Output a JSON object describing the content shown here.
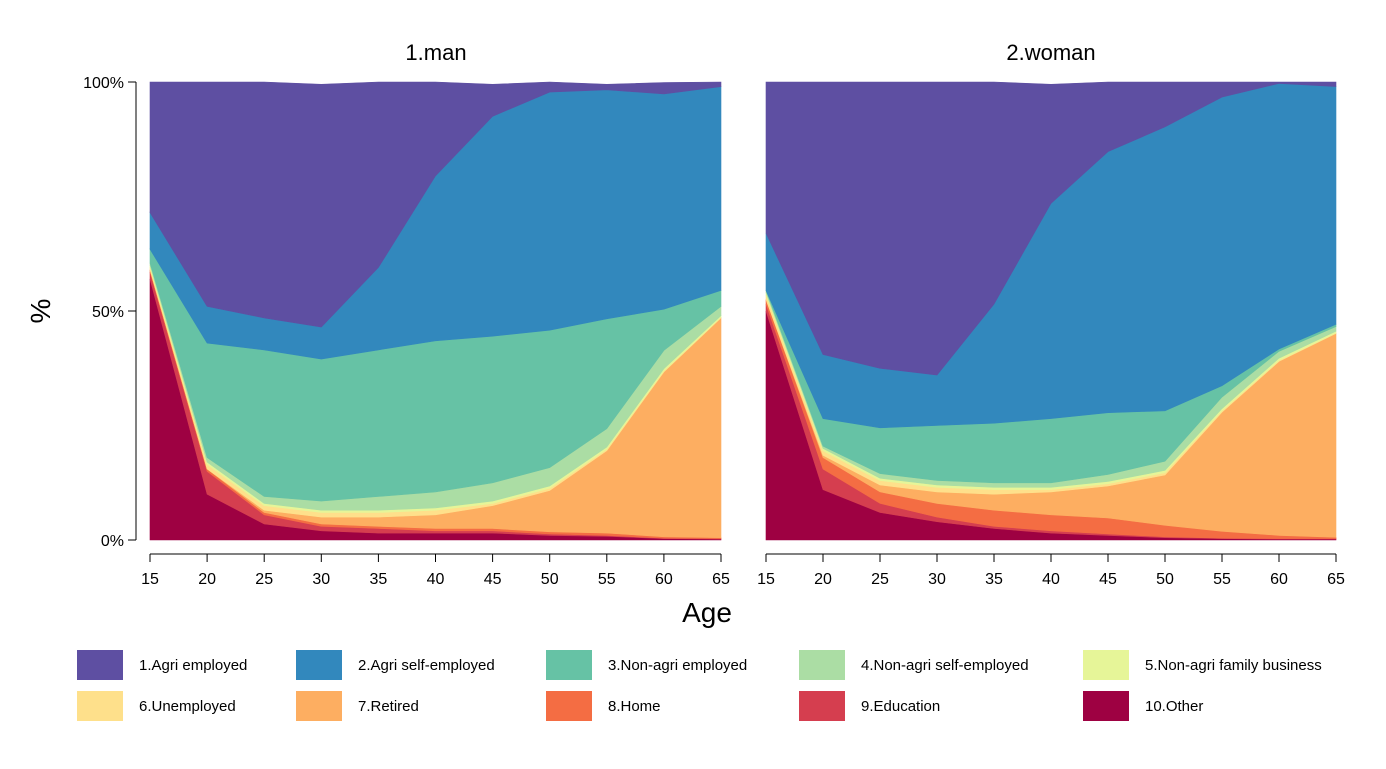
{
  "chart_data": {
    "type": "area",
    "stacking": "percent",
    "xlabel": "Age",
    "ylabel": "%",
    "xlim": [
      15,
      65
    ],
    "ylim": [
      0,
      100
    ],
    "xticks": [
      15,
      20,
      25,
      30,
      35,
      40,
      45,
      50,
      55,
      60,
      65
    ],
    "yticks": [
      0,
      50,
      100
    ],
    "ytick_labels": [
      "0%",
      "50%",
      "100%"
    ],
    "grid": false,
    "legend_position": "bottom",
    "x": [
      15,
      20,
      25,
      30,
      35,
      40,
      45,
      50,
      55,
      60,
      65
    ],
    "categories": [
      {
        "name": "1.Agri employed",
        "color": "#5E4FA2"
      },
      {
        "name": "2.Agri self-employed",
        "color": "#3288BD"
      },
      {
        "name": "3.Non-agri employed",
        "color": "#66C2A5"
      },
      {
        "name": "4.Non-agri self-employed",
        "color": "#ABDDA4"
      },
      {
        "name": "5.Non-agri family business",
        "color": "#E6F598"
      },
      {
        "name": "6.Unemployed",
        "color": "#FEE08B"
      },
      {
        "name": "7.Retired",
        "color": "#FDAE61"
      },
      {
        "name": "8.Home",
        "color": "#F46D43"
      },
      {
        "name": "9.Education",
        "color": "#D53E4F"
      },
      {
        "name": "10.Other",
        "color": "#9E0142"
      }
    ],
    "panels": [
      {
        "title": "1.man",
        "series": [
          {
            "name": "10.Other",
            "values": [
              57,
              10,
              3.5,
              2,
              1.5,
              1.5,
              1.5,
              1,
              0.8,
              0.3,
              0.2
            ]
          },
          {
            "name": "9.Education",
            "values": [
              1.5,
              5,
              2,
              1,
              1,
              0.5,
              0.5,
              0.3,
              0.2,
              0.1,
              0.1
            ]
          },
          {
            "name": "8.Home",
            "values": [
              0.5,
              0.5,
              0.5,
              0.5,
              0.5,
              0.5,
              0.5,
              0.5,
              0.5,
              0.3,
              0.2
            ]
          },
          {
            "name": "7.Retired",
            "values": [
              0,
              0,
              0.5,
              1.5,
              2,
              3,
              5,
              9,
              18,
              36,
              48
            ]
          },
          {
            "name": "6.Unemployed",
            "values": [
              0.5,
              1,
              1,
              1,
              1,
              1,
              0.5,
              0.5,
              0.3,
              0.2,
              0.1
            ]
          },
          {
            "name": "5.Non-agri family business",
            "values": [
              0.5,
              0.5,
              0.5,
              0.5,
              0.5,
              0.5,
              0.5,
              0.5,
              0.5,
              0.5,
              0.4
            ]
          },
          {
            "name": "4.Non-agri self-employed",
            "values": [
              0.5,
              1,
              1.5,
              2,
              3,
              3.5,
              4,
              4,
              4,
              4,
              2
            ]
          },
          {
            "name": "3.Non-agri employed",
            "values": [
              3,
              25,
              32,
              31,
              32,
              33,
              32,
              30,
              24,
              9,
              3.5
            ]
          },
          {
            "name": "2.Agri self-employed",
            "values": [
              8,
              8,
              7,
              7,
              18,
              36,
              48,
              52,
              50,
              47,
              44.5
            ]
          },
          {
            "name": "1.Agri employed",
            "values": [
              28.5,
              49,
              52,
              53,
              40.5,
              20.5,
              7,
              2.2,
              1.2,
              2.5,
              1
            ]
          }
        ]
      },
      {
        "title": "2.woman",
        "series": [
          {
            "name": "10.Other",
            "values": [
              50,
              11,
              6,
              4,
              2.5,
              1.5,
              1,
              0.5,
              0.3,
              0.2,
              0.2
            ]
          },
          {
            "name": "9.Education",
            "values": [
              1.5,
              4.5,
              2,
              1,
              0.5,
              0.5,
              0.3,
              0.2,
              0.1,
              0.1,
              0.1
            ]
          },
          {
            "name": "8.Home",
            "values": [
              1,
              2.5,
              2.5,
              3,
              3.5,
              3.5,
              3.5,
              2.5,
              1.5,
              0.7,
              0.3
            ]
          },
          {
            "name": "7.Retired",
            "values": [
              0,
              0.5,
              1.5,
              2.5,
              3.5,
              5,
              7,
              11,
              26,
              38,
              44.5
            ]
          },
          {
            "name": "6.Unemployed",
            "values": [
              1,
              1,
              1,
              1,
              1,
              0.5,
              0.5,
              0.5,
              0.3,
              0.2,
              0.1
            ]
          },
          {
            "name": "5.Non-agri family business",
            "values": [
              0.5,
              0.5,
              0.5,
              0.5,
              0.5,
              0.5,
              0.5,
              0.5,
              0.5,
              0.5,
              0.4
            ]
          },
          {
            "name": "4.Non-agri self-employed",
            "values": [
              0.5,
              0.5,
              1,
              1,
              1,
              1,
              1.5,
              2,
              2.5,
              1.5,
              1
            ]
          },
          {
            "name": "3.Non-agri employed",
            "values": [
              0,
              6,
              10,
              12,
              13,
              14,
              13.5,
              11,
              2.5,
              0.5,
              0.5
            ]
          },
          {
            "name": "2.Agri self-employed",
            "values": [
              12.5,
              14,
              13,
              11,
              26,
              47,
              57,
              62,
              63,
              58,
              51.9
            ]
          },
          {
            "name": "1.Agri employed",
            "values": [
              33,
              59.5,
              62.5,
              64,
              48.5,
              26,
              15.2,
              9.8,
              3.3,
              0.3,
              1
            ]
          }
        ]
      }
    ]
  }
}
